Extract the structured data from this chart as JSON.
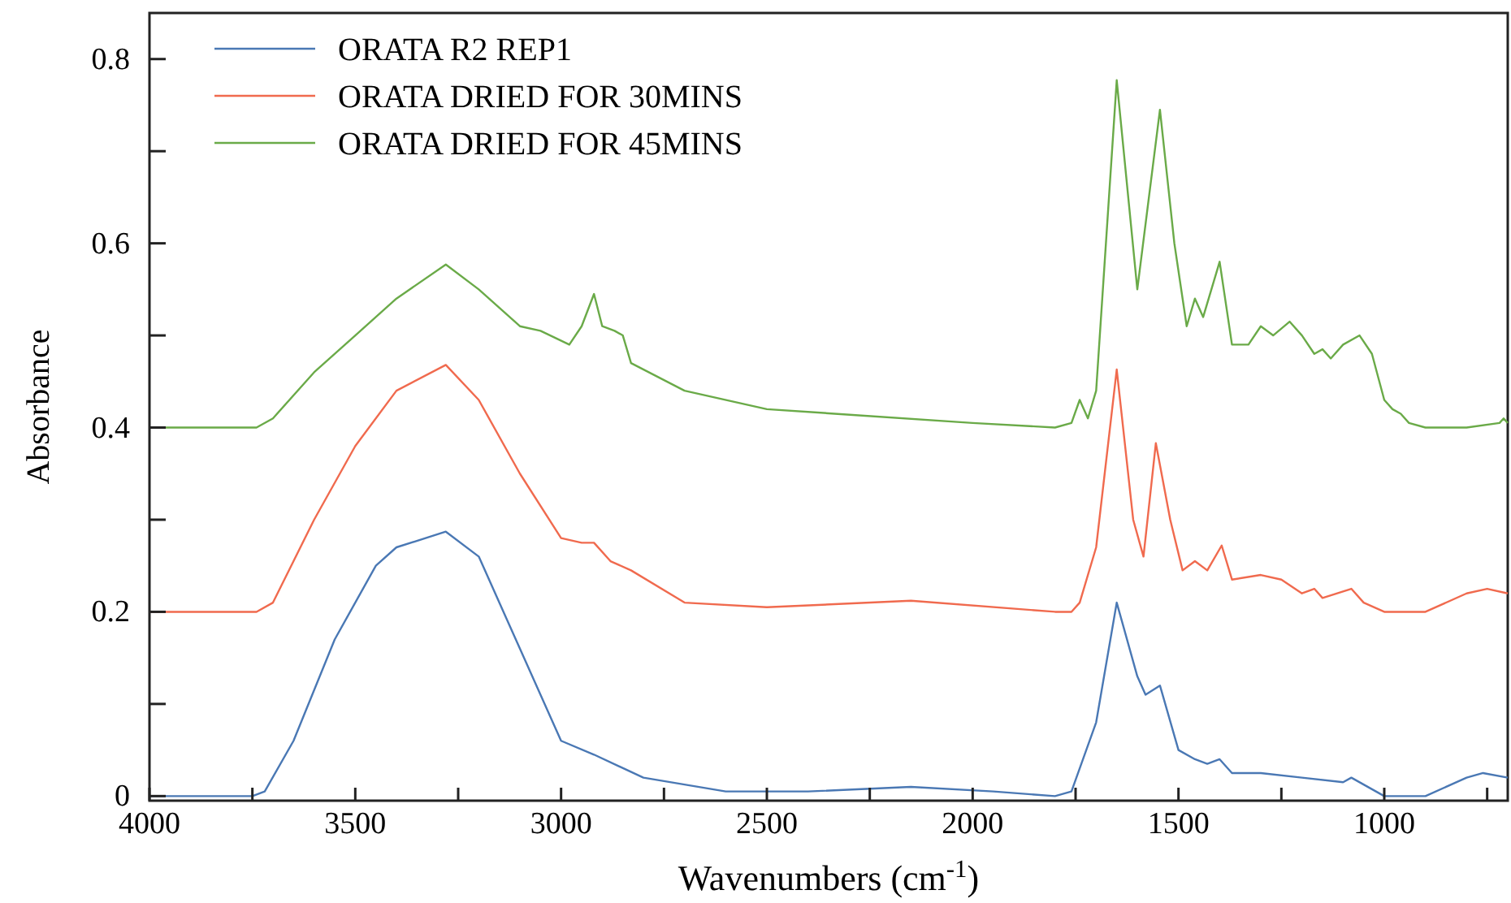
{
  "chart_data": {
    "type": "line",
    "xlabel": "Wavenumbers (cm$^{-1}$)",
    "ylabel": "Absorbance",
    "xlim": [
      4000,
      700
    ],
    "ylim": [
      -0.005,
      0.85
    ],
    "xticks": [
      4000,
      {
        "value": 3750,
        "label": null
      },
      3500,
      {
        "value": 3250,
        "label": null
      },
      3000,
      {
        "value": 2750,
        "label": null
      },
      2500,
      {
        "value": 2250,
        "label": null
      },
      2000,
      {
        "value": 1750,
        "label": null
      },
      1500,
      {
        "value": 1250,
        "label": null
      },
      1000,
      {
        "value": 750,
        "label": null
      }
    ],
    "yticks": [
      0,
      {
        "value": 0.1,
        "label": null
      },
      0.2,
      {
        "value": 0.3,
        "label": null
      },
      0.4,
      {
        "value": 0.5,
        "label": null
      },
      0.6,
      {
        "value": 0.7,
        "label": null
      },
      0.8
    ],
    "grid": false,
    "legend": "top left",
    "marker": "none",
    "line_style": "solid",
    "series": [
      {
        "name": "ORATA R2 REP1",
        "color": "#4a78b4",
        "x": [
          4000,
          3750,
          3720,
          3650,
          3550,
          3450,
          3400,
          3280,
          3200,
          3100,
          3000,
          2920,
          2800,
          2600,
          2400,
          2150,
          1950,
          1800,
          1760,
          1700,
          1650,
          1600,
          1580,
          1545,
          1500,
          1460,
          1430,
          1400,
          1370,
          1300,
          1200,
          1100,
          1080,
          1000,
          900,
          800,
          760,
          700
        ],
        "values": [
          0,
          0,
          0.005,
          0.06,
          0.17,
          0.25,
          0.27,
          0.287,
          0.26,
          0.16,
          0.06,
          0.045,
          0.02,
          0.005,
          0.005,
          0.01,
          0.005,
          0,
          0.005,
          0.08,
          0.21,
          0.13,
          0.11,
          0.12,
          0.05,
          0.04,
          0.035,
          0.04,
          0.025,
          0.025,
          0.02,
          0.015,
          0.02,
          0,
          0,
          0.02,
          0.025,
          0.02
        ]
      },
      {
        "name": "ORATA DRIED FOR 30MINS",
        "color": "#f06a4e",
        "x": [
          4000,
          3740,
          3700,
          3600,
          3500,
          3400,
          3280,
          3200,
          3100,
          3000,
          2950,
          2920,
          2880,
          2830,
          2700,
          2500,
          2150,
          1800,
          1760,
          1740,
          1700,
          1650,
          1610,
          1585,
          1555,
          1520,
          1490,
          1460,
          1430,
          1395,
          1370,
          1300,
          1250,
          1200,
          1170,
          1150,
          1080,
          1050,
          1000,
          900,
          800,
          750,
          700
        ],
        "values": [
          0.2,
          0.2,
          0.21,
          0.3,
          0.38,
          0.44,
          0.468,
          0.43,
          0.35,
          0.28,
          0.275,
          0.275,
          0.255,
          0.245,
          0.21,
          0.205,
          0.212,
          0.2,
          0.2,
          0.21,
          0.27,
          0.463,
          0.3,
          0.26,
          0.383,
          0.3,
          0.245,
          0.255,
          0.245,
          0.272,
          0.235,
          0.24,
          0.235,
          0.22,
          0.225,
          0.215,
          0.225,
          0.21,
          0.2,
          0.2,
          0.22,
          0.225,
          0.22
        ]
      },
      {
        "name": "ORATA DRIED FOR 45MINS",
        "color": "#6aaa48",
        "x": [
          4000,
          3740,
          3700,
          3600,
          3500,
          3400,
          3280,
          3200,
          3100,
          3050,
          2980,
          2950,
          2920,
          2900,
          2870,
          2850,
          2830,
          2700,
          2500,
          2000,
          1800,
          1760,
          1740,
          1720,
          1700,
          1650,
          1600,
          1545,
          1510,
          1480,
          1460,
          1440,
          1400,
          1370,
          1330,
          1300,
          1270,
          1230,
          1200,
          1170,
          1150,
          1130,
          1100,
          1060,
          1030,
          1000,
          980,
          960,
          940,
          900,
          800,
          720,
          710,
          700
        ],
        "values": [
          0.4,
          0.4,
          0.41,
          0.46,
          0.5,
          0.54,
          0.577,
          0.55,
          0.51,
          0.505,
          0.49,
          0.51,
          0.545,
          0.51,
          0.505,
          0.5,
          0.47,
          0.44,
          0.42,
          0.405,
          0.4,
          0.405,
          0.43,
          0.41,
          0.44,
          0.777,
          0.55,
          0.745,
          0.6,
          0.51,
          0.54,
          0.52,
          0.58,
          0.49,
          0.49,
          0.51,
          0.5,
          0.515,
          0.5,
          0.48,
          0.485,
          0.475,
          0.49,
          0.5,
          0.48,
          0.43,
          0.42,
          0.415,
          0.405,
          0.4,
          0.4,
          0.405,
          0.41,
          0.405
        ]
      }
    ]
  }
}
